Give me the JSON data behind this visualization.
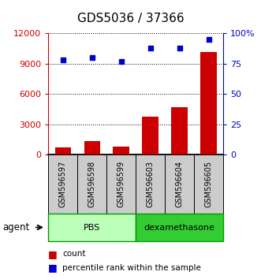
{
  "title": "GDS5036 / 37366",
  "samples": [
    "GSM596597",
    "GSM596598",
    "GSM596599",
    "GSM596603",
    "GSM596604",
    "GSM596605"
  ],
  "counts": [
    700,
    1400,
    800,
    3800,
    4700,
    10200
  ],
  "percentile_ranks": [
    78,
    80,
    77,
    88,
    88,
    95
  ],
  "left_ylim": [
    0,
    12000
  ],
  "right_ylim": [
    0,
    100
  ],
  "left_yticks": [
    0,
    3000,
    6000,
    9000,
    12000
  ],
  "right_yticks": [
    0,
    25,
    50,
    75,
    100
  ],
  "left_yticklabels": [
    "0",
    "3000",
    "6000",
    "9000",
    "12000"
  ],
  "right_yticklabels": [
    "0",
    "25",
    "50",
    "75",
    "100%"
  ],
  "bar_color": "#cc0000",
  "dot_color": "#0000cc",
  "groups": [
    {
      "label": "PBS",
      "n": 3,
      "color": "#bbffbb",
      "border_color": "#009900"
    },
    {
      "label": "dexamethasone",
      "n": 3,
      "color": "#33cc33",
      "border_color": "#009900"
    }
  ],
  "agent_label": "agent",
  "left_axis_color": "#cc0000",
  "right_axis_color": "#0000cc",
  "sample_box_color": "#cccccc",
  "title_fontsize": 11,
  "tick_fontsize": 8,
  "sample_fontsize": 7,
  "group_fontsize": 8,
  "legend_fontsize": 7.5
}
